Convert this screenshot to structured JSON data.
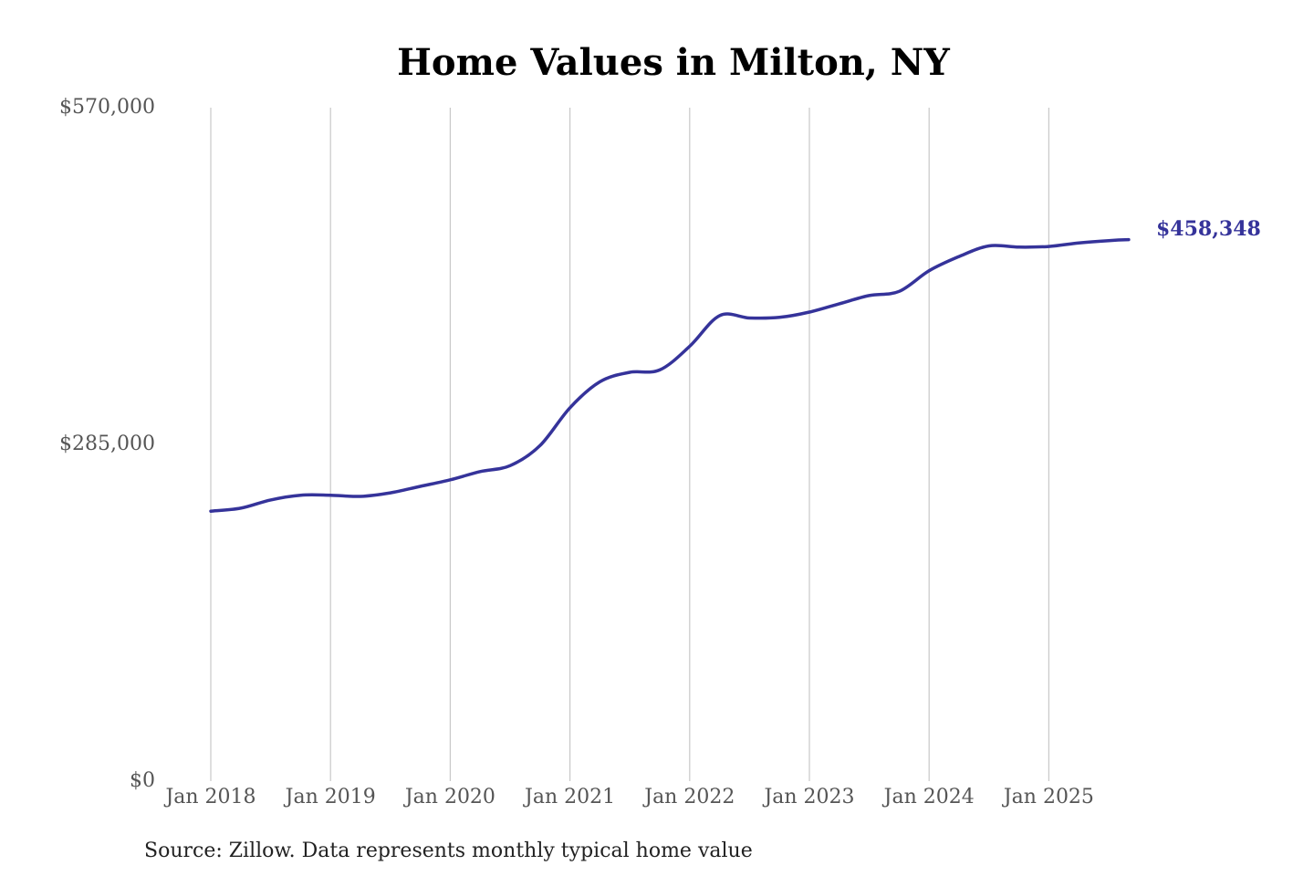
{
  "chart_data": {
    "type": "line",
    "title": "Home Values in Milton, NY",
    "source": "Source: Zillow. Data represents monthly typical home value",
    "x_tick_labels": [
      "Jan 2018",
      "Jan 2019",
      "Jan 2020",
      "Jan 2021",
      "Jan 2022",
      "Jan 2023",
      "Jan 2024",
      "Jan 2025"
    ],
    "y_tick_labels": [
      "$570,000",
      "$285,000",
      "$0"
    ],
    "y_tick_values": [
      570000,
      285000,
      0
    ],
    "ylim": [
      0,
      570000
    ],
    "xlim": [
      "2018-01",
      "2025-09"
    ],
    "grid": {
      "vertical": true,
      "horizontal": false
    },
    "line_color": "#35339a",
    "end_label": "$458,348",
    "series": [
      {
        "x": [
          "2018-01",
          "2018-04",
          "2018-07",
          "2018-10",
          "2019-01",
          "2019-04",
          "2019-07",
          "2019-10",
          "2020-01",
          "2020-04",
          "2020-07",
          "2020-10",
          "2021-01",
          "2021-04",
          "2021-07",
          "2021-10",
          "2022-01",
          "2022-04",
          "2022-07",
          "2022-10",
          "2023-01",
          "2023-04",
          "2023-07",
          "2023-10",
          "2024-01",
          "2024-04",
          "2024-07",
          "2024-10",
          "2025-01",
          "2025-04",
          "2025-07",
          "2025-09"
        ],
        "values": [
          228500,
          231000,
          238000,
          242000,
          242000,
          241000,
          244000,
          249500,
          255000,
          262000,
          267000,
          284000,
          316000,
          338000,
          346000,
          348000,
          368000,
          394000,
          392000,
          392500,
          397000,
          404000,
          411000,
          414500,
          432000,
          444000,
          453000,
          452000,
          452500,
          455500,
          457500,
          458348
        ]
      }
    ]
  }
}
